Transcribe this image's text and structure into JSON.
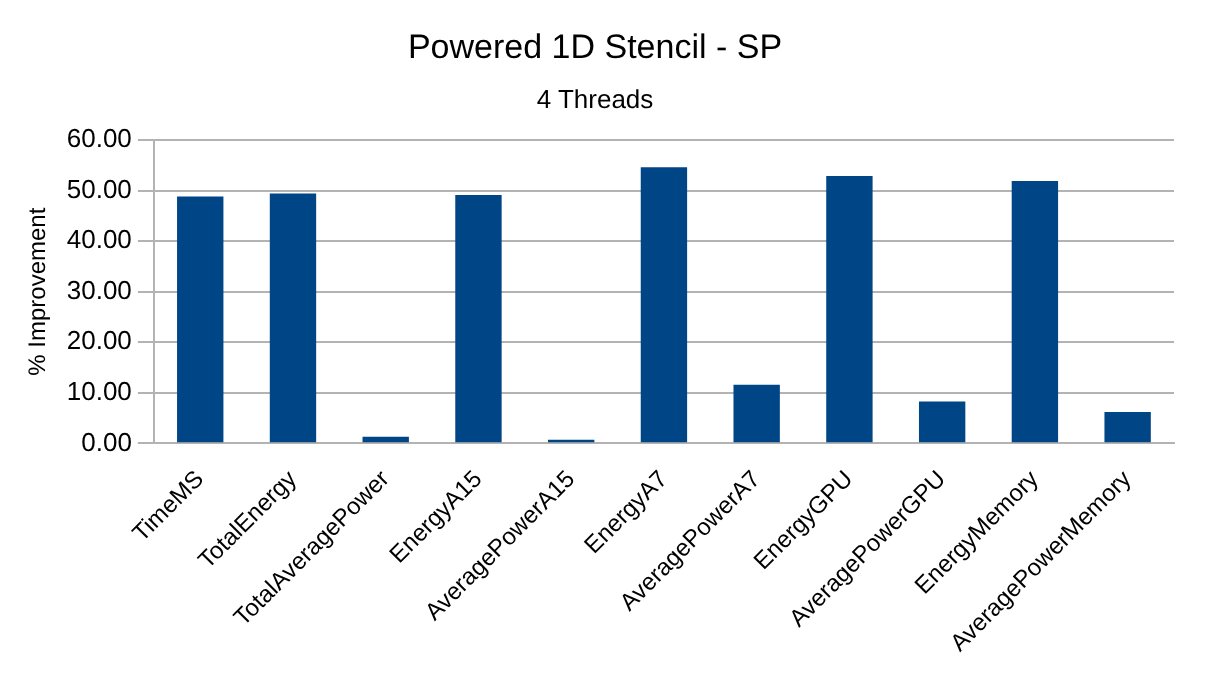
{
  "chart_data": {
    "type": "bar",
    "title": "Powered 1D Stencil - SP",
    "subtitle": "4 Threads",
    "ylabel": "% Improvement",
    "categories": [
      "TimeMS",
      "TotalEnergy",
      "TotalAveragePower",
      "EnergyA15",
      "AveragePowerA15",
      "EnergyA7",
      "AveragePowerA7",
      "EnergyGPU",
      "AveragePowerGPU",
      "EnergyMemory",
      "AveragePowerMemory"
    ],
    "values": [
      48.8,
      49.4,
      1.3,
      49.1,
      0.7,
      54.6,
      11.6,
      52.9,
      8.3,
      51.9,
      6.2
    ],
    "color": "#004586",
    "ylim": [
      0,
      60
    ],
    "yticks": [
      {
        "value": 0,
        "label": "0.00"
      },
      {
        "value": 10,
        "label": "10.00"
      },
      {
        "value": 20,
        "label": "20.00"
      },
      {
        "value": 30,
        "label": "30.00"
      },
      {
        "value": 40,
        "label": "40.00"
      },
      {
        "value": 50,
        "label": "50.00"
      },
      {
        "value": 60,
        "label": "60.00"
      }
    ],
    "grid": "y",
    "legend": false
  }
}
